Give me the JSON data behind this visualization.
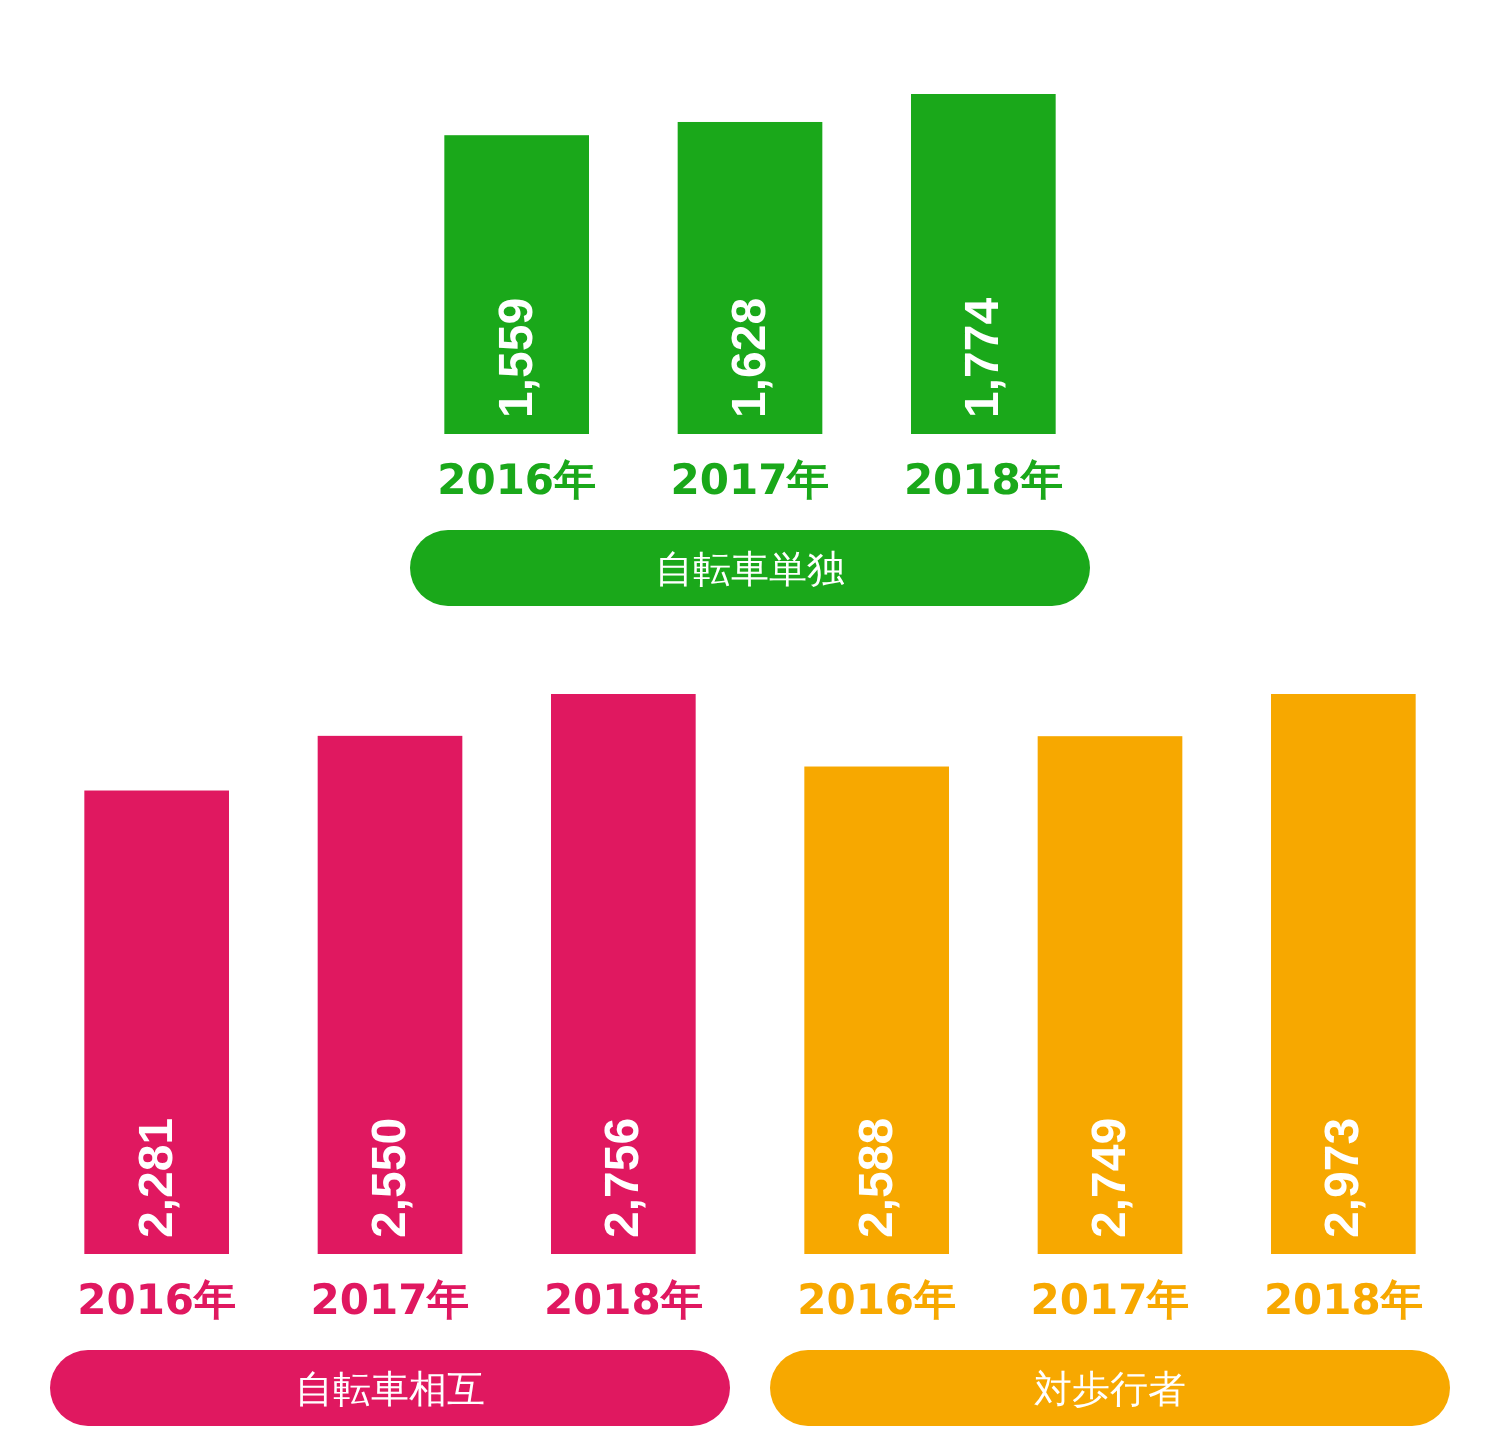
{
  "chart_data": [
    {
      "type": "bar",
      "categories": [
        "2016年",
        "2017年",
        "2018年"
      ],
      "values": [
        1559,
        1628,
        1774
      ],
      "value_labels": [
        "1,559",
        "1,628",
        "1,774"
      ],
      "color": "#1aa81a",
      "xlabel": "自転車単独"
    },
    {
      "type": "bar",
      "categories": [
        "2016年",
        "2017年",
        "2018年"
      ],
      "values": [
        2281,
        2550,
        2756
      ],
      "value_labels": [
        "2,281",
        "2,550",
        "2,756"
      ],
      "color": "#e01860",
      "xlabel": "自転車相互"
    },
    {
      "type": "bar",
      "categories": [
        "2016年",
        "2017年",
        "2018年"
      ],
      "values": [
        2588,
        2749,
        2973
      ],
      "value_labels": [
        "2,588",
        "2,749",
        "2,973"
      ],
      "color": "#f7a800",
      "xlabel": "対歩行者"
    }
  ]
}
